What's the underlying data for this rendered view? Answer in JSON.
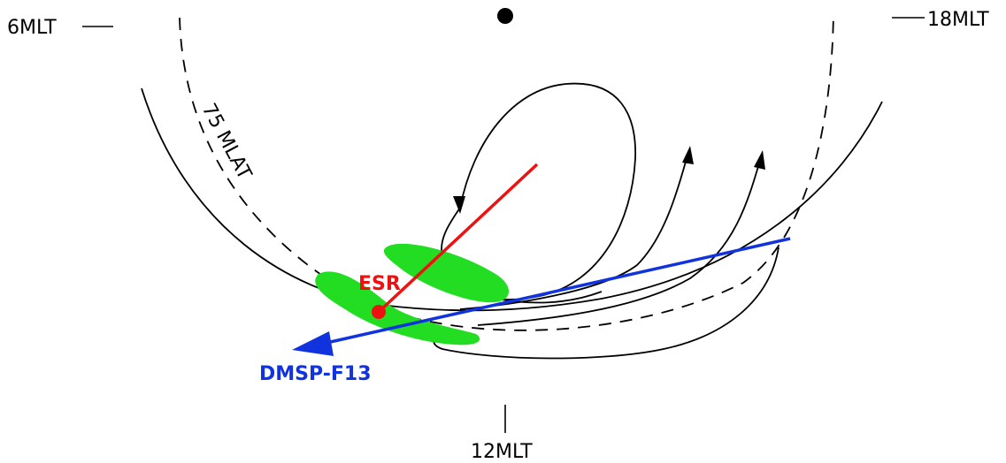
{
  "labels": {
    "mlt_6": "6MLT",
    "mlt_18": "18MLT",
    "mlt_12": "12MLT",
    "mlat": "75 MLAT",
    "esr": "ESR",
    "satellite": "DMSP-F13"
  },
  "colors": {
    "esr_beam": "#ee1111",
    "esr_station": "#ee1111",
    "satellite_track": "#1133dd",
    "patches": "#22dd22",
    "flow_lines": "#000000"
  },
  "icons": {
    "pole": "black-dot-icon",
    "esr_station": "red-dot-icon"
  }
}
